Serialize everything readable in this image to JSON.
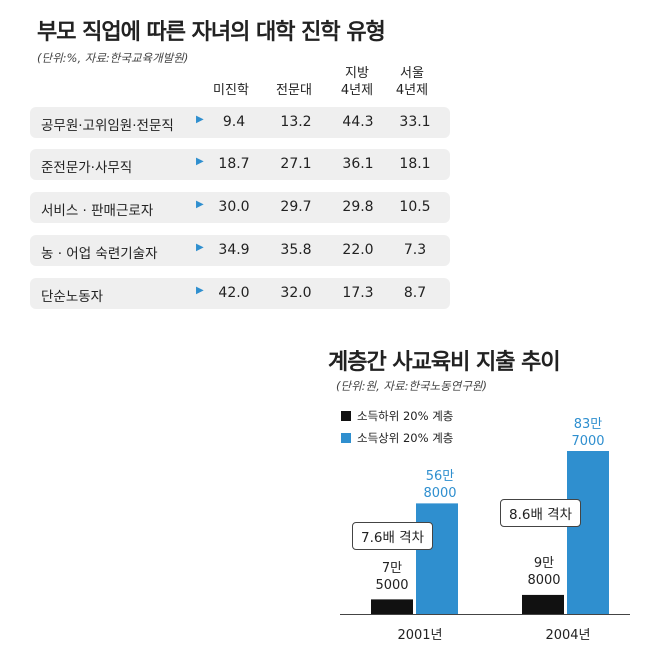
{
  "table": {
    "title": "부모 직업에 따른 자녀의 대학 진학 유형",
    "source": "(단위:%, 자료:한국교육개발원)",
    "columns": [
      {
        "line1": "미진학",
        "line2": ""
      },
      {
        "line1": "전문대",
        "line2": ""
      },
      {
        "line1": "지방",
        "line2": "4년제"
      },
      {
        "line1": "서울",
        "line2": "4년제"
      }
    ],
    "rows": [
      {
        "label": "공무원·고위임원·전문직",
        "values": [
          "9.4",
          "13.2",
          "44.3",
          "33.1"
        ]
      },
      {
        "label": "준전문가·사무직",
        "values": [
          "18.7",
          "27.1",
          "36.1",
          "18.1"
        ]
      },
      {
        "label": "서비스 · 판매근로자",
        "values": [
          "30.0",
          "29.7",
          "29.8",
          "10.5"
        ]
      },
      {
        "label": "농 · 어업 숙련기술자",
        "values": [
          "34.9",
          "35.8",
          "22.0",
          "7.3"
        ]
      },
      {
        "label": "단순노동자",
        "values": [
          "42.0",
          "32.0",
          "17.3",
          "8.7"
        ]
      }
    ],
    "arrow_glyph": "▶",
    "arrow_color": "#2f8fcf"
  },
  "chart_data": [
    {
      "type": "table",
      "title": "부모 직업에 따른 자녀의 대학 진학 유형",
      "unit": "%",
      "columns": [
        "미진학",
        "전문대",
        "지방 4년제",
        "서울 4년제"
      ],
      "rows": [
        {
          "label": "공무원·고위임원·전문직",
          "values": [
            9.4,
            13.2,
            44.3,
            33.1
          ]
        },
        {
          "label": "준전문가·사무직",
          "values": [
            18.7,
            27.1,
            36.1,
            18.1
          ]
        },
        {
          "label": "서비스 · 판매근로자",
          "values": [
            30.0,
            29.7,
            29.8,
            10.5
          ]
        },
        {
          "label": "농 · 어업 숙련기술자",
          "values": [
            34.9,
            35.8,
            22.0,
            7.3
          ]
        },
        {
          "label": "단순노동자",
          "values": [
            42.0,
            32.0,
            17.3,
            8.7
          ]
        }
      ]
    },
    {
      "type": "bar",
      "title": "계층간 사교육비 지출 추이",
      "source": "(단위:원, 자료:한국노동연구원)",
      "categories": [
        "2001년",
        "2004년"
      ],
      "series": [
        {
          "name": "소득하위 20% 계층",
          "color": "#111111",
          "values": [
            75000,
            98000
          ],
          "labels": [
            [
              "7만",
              "5000"
            ],
            [
              "9만",
              "8000"
            ]
          ]
        },
        {
          "name": "소득상위 20% 계층",
          "color": "#2f8fcf",
          "values": [
            568000,
            837000
          ],
          "labels": [
            [
              "56만",
              "8000"
            ],
            [
              "83만",
              "7000"
            ]
          ]
        }
      ],
      "annotations": [
        "7.6배 격차",
        "8.6배 격차"
      ],
      "ylim": [
        0,
        837000
      ]
    }
  ]
}
